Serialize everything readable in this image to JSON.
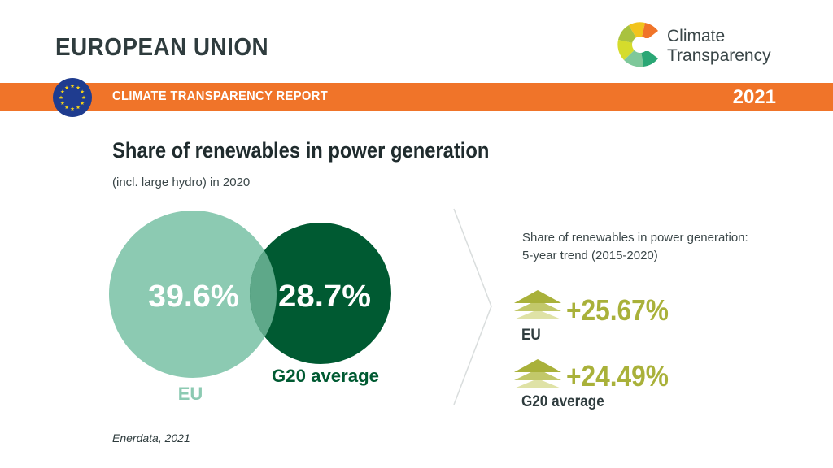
{
  "header": {
    "country": "EUROPEAN UNION",
    "band_label": "CLIMATE TRANSPARENCY REPORT",
    "year": "2021",
    "logo_line1": "Climate",
    "logo_line2": "Transparency"
  },
  "colors": {
    "orange_band": "#f07429",
    "eu_circle": "#8ccab2",
    "g20_circle": "#005a32",
    "trend_value": "#a9b13a",
    "dark_text": "#2f3c3e"
  },
  "chart_data": {
    "type": "venn",
    "title": "Share of renewables in power generation",
    "subtitle": "(incl. large hydro) in 2020",
    "series": [
      {
        "name": "EU",
        "value": 39.6,
        "label": "39.6%"
      },
      {
        "name": "G20 average",
        "value": 28.7,
        "label": "28.7%"
      }
    ]
  },
  "trend": {
    "heading_line1": "Share of renewables in power generation:",
    "heading_line2": "5-year trend (2015-2020)",
    "items": [
      {
        "name": "EU",
        "value": 25.67,
        "label": "+25.67%"
      },
      {
        "name": "G20 average",
        "value": 24.49,
        "label": "+24.49%"
      }
    ]
  },
  "source": "Enerdata, 2021"
}
